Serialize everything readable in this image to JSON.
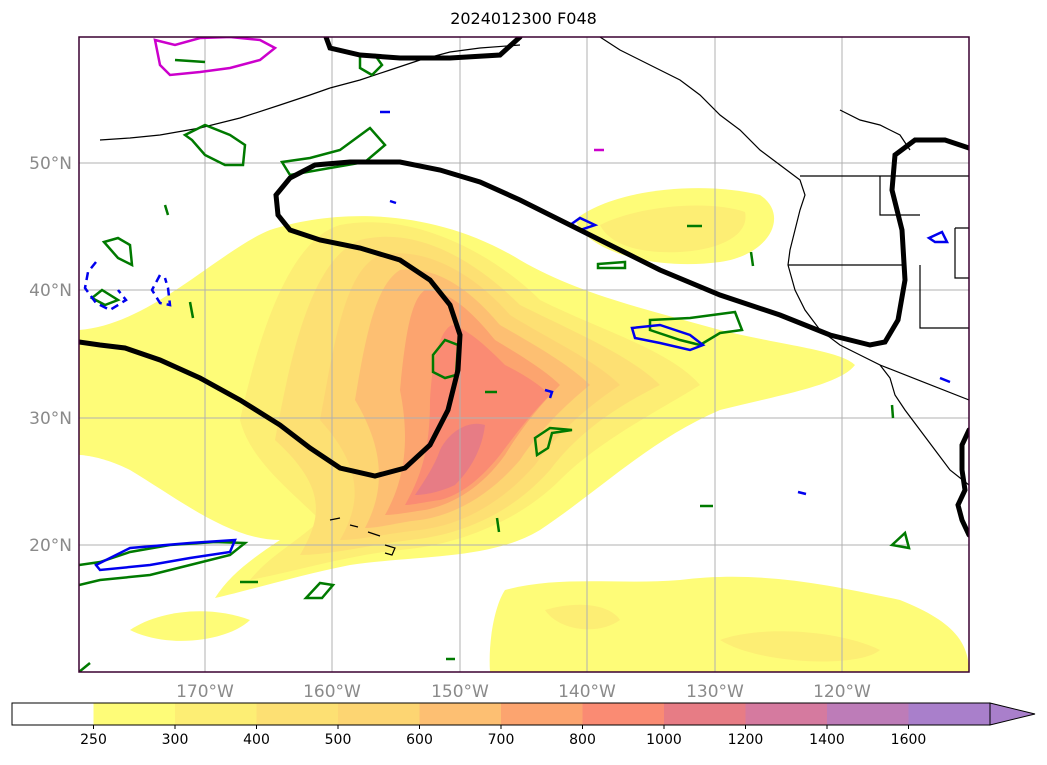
{
  "title": "2024012300 F048",
  "latitude_labels": [
    "50°N",
    "40°N",
    "30°N",
    "20°N"
  ],
  "longitude_labels": [
    "170°W",
    "160°W",
    "150°W",
    "140°W",
    "130°W",
    "120°W"
  ],
  "colorbar": {
    "tick_labels": [
      "250",
      "300",
      "400",
      "500",
      "600",
      "700",
      "800",
      "1000",
      "1200",
      "1400",
      "1600"
    ],
    "colors": [
      "#ffffff",
      "#fefc78",
      "#fdee74",
      "#fde073",
      "#fdd572",
      "#fdbf72",
      "#fca46f",
      "#fa8b73",
      "#e77c85",
      "#d57a9f",
      "#bd7cb8",
      "#a97fcb"
    ],
    "extend": "max"
  },
  "overlay_colors": {
    "black_contour": "#000000",
    "green_contour": "#007a00",
    "blue_contour": "#0000ee",
    "magenta_contour": "#cc00cc"
  }
}
